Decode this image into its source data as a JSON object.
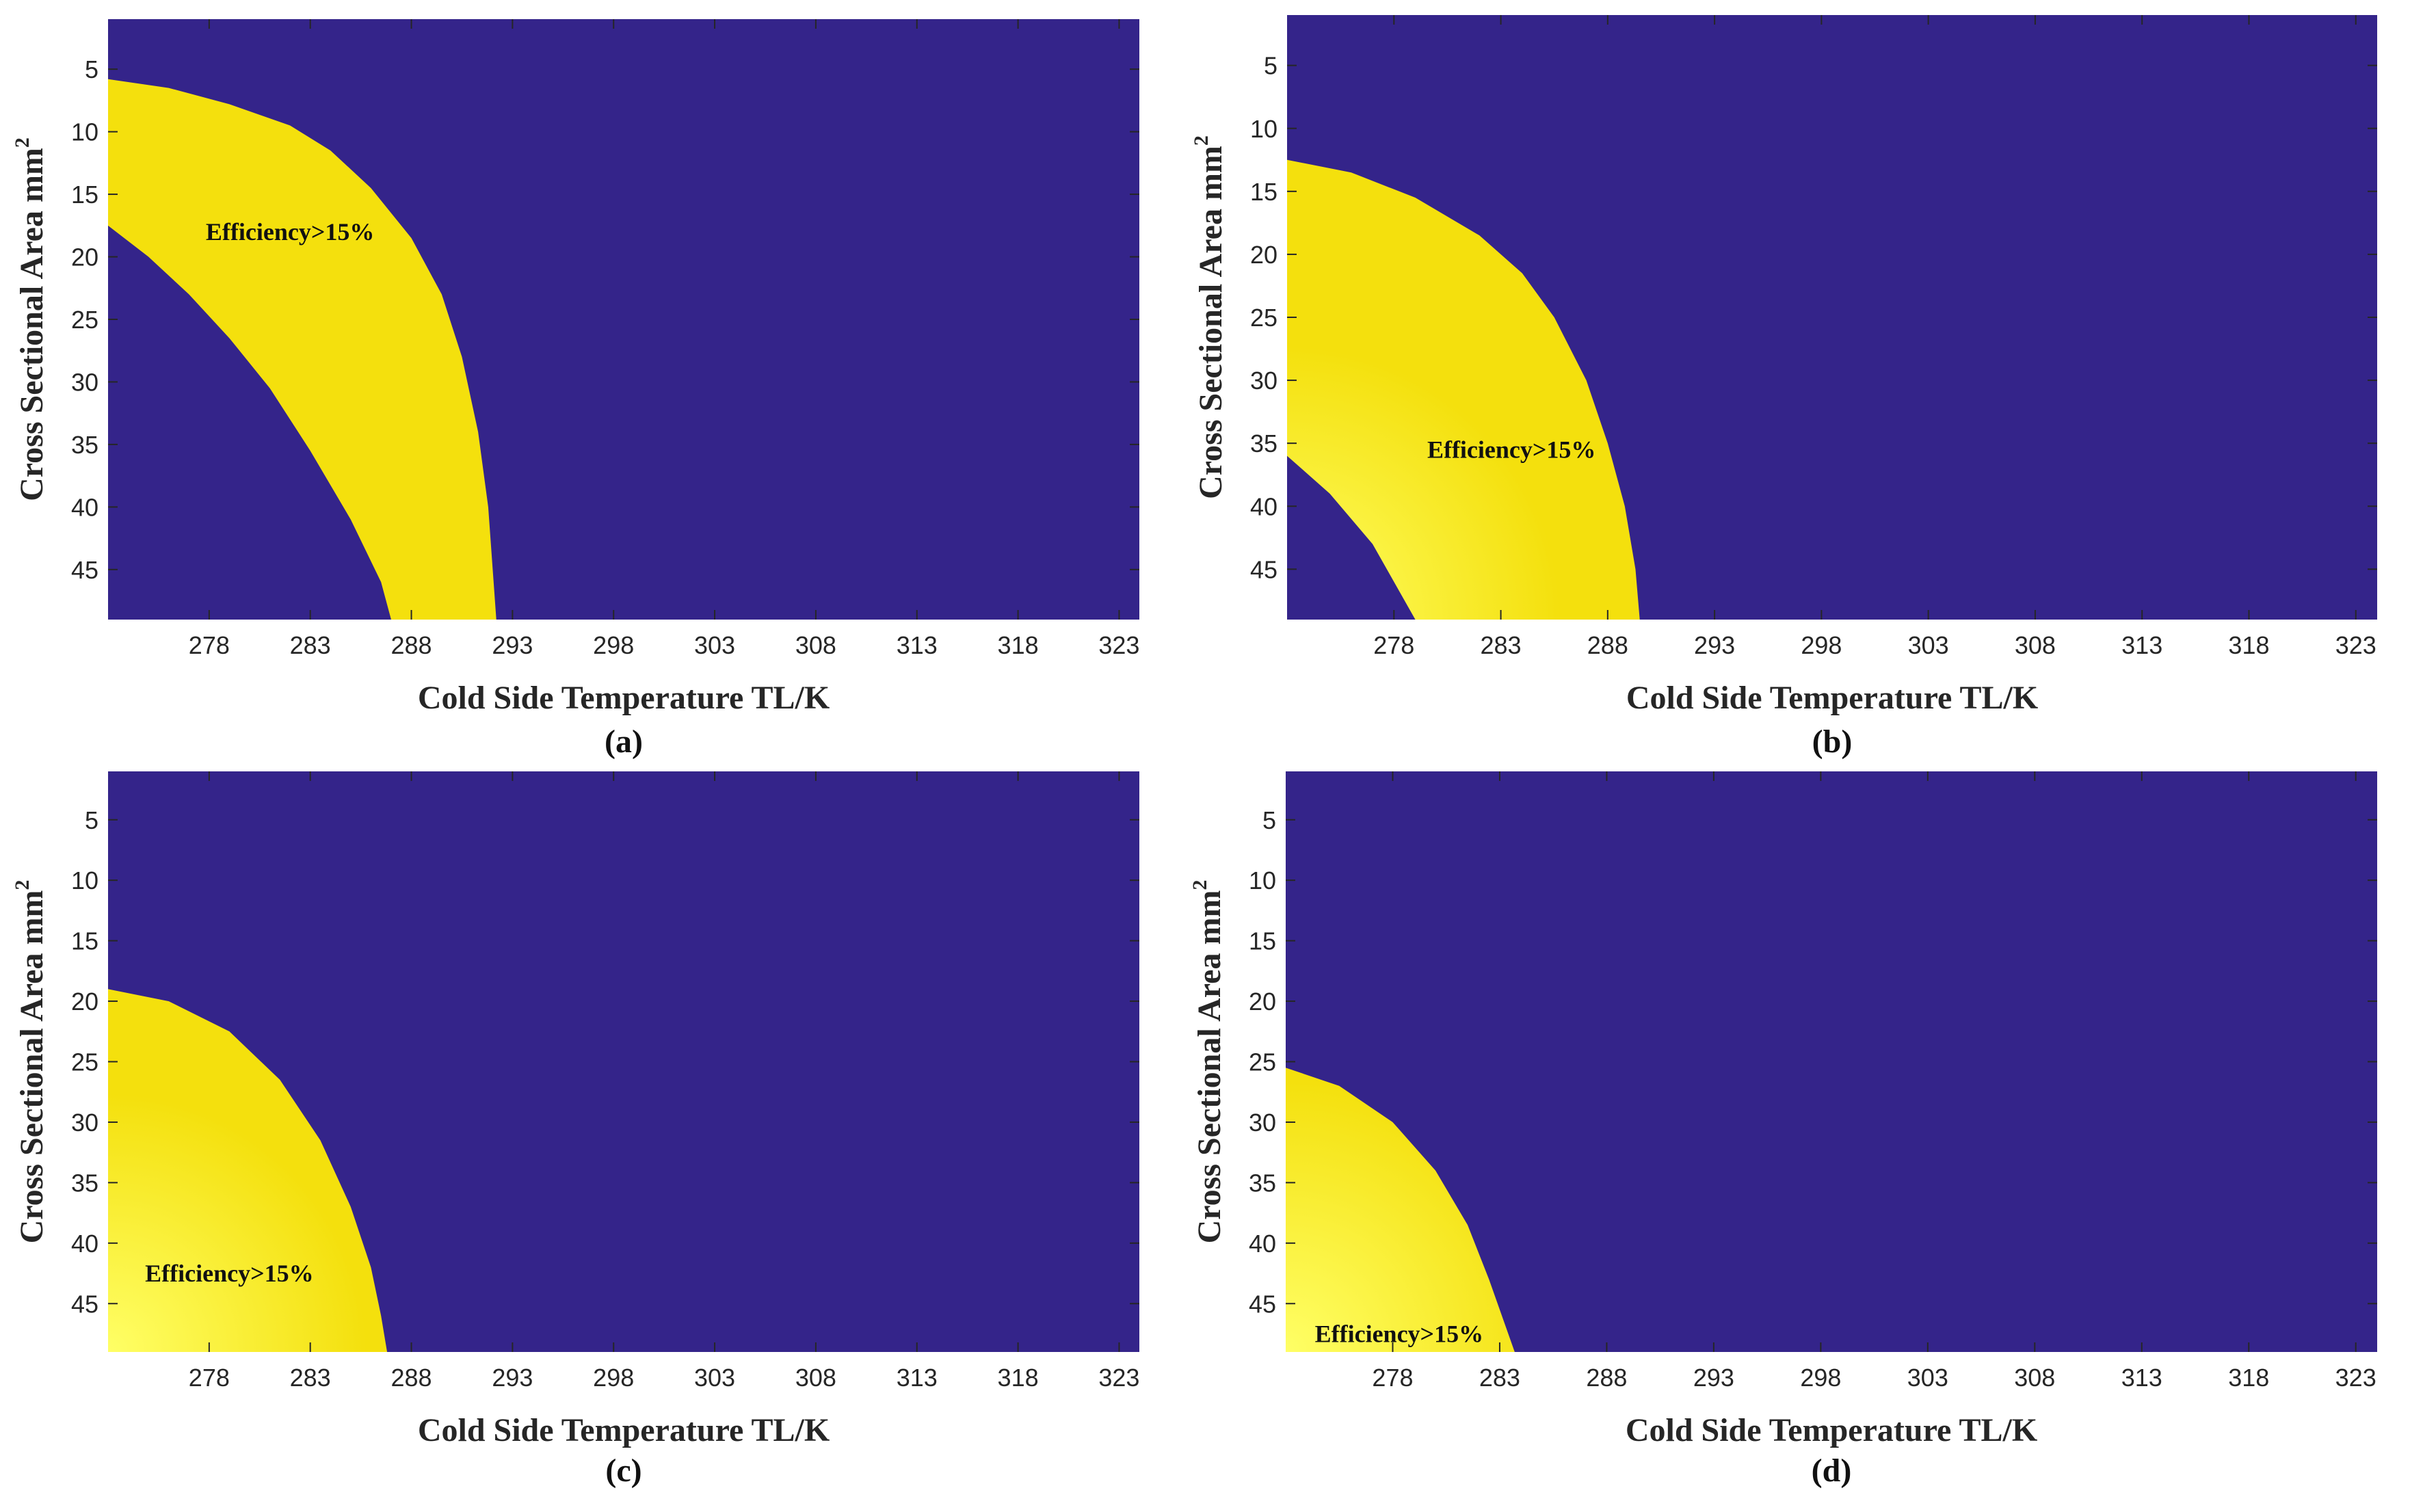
{
  "chart_data": [
    {
      "type": "heatmap",
      "panel": "(a)",
      "caption": "(a)",
      "xlabel": "Cold Side Temperature TL/K",
      "ylabel": "Cross Sectional Area mm",
      "ylabel_superscript": "2",
      "xticks": [
        "278",
        "283",
        "288",
        "293",
        "298",
        "303",
        "308",
        "313",
        "318",
        "323"
      ],
      "yticks": [
        "5",
        "10",
        "15",
        "20",
        "25",
        "30",
        "35",
        "40",
        "45"
      ],
      "xlim": [
        273,
        324
      ],
      "ylim": [
        1,
        49
      ],
      "colors": {
        "background": "#34248a",
        "region": "#f4e00d",
        "region_center": "#ffff66"
      },
      "annotation": {
        "text": "Efficiency>15%",
        "x": 282,
        "y": 18
      },
      "region": {
        "description": "Efficiency>15% band",
        "outer_boundary": [
          [
            273,
            5.8
          ],
          [
            276,
            6.5
          ],
          [
            279,
            7.8
          ],
          [
            282,
            9.5
          ],
          [
            284,
            11.5
          ],
          [
            286,
            14.5
          ],
          [
            288,
            18.5
          ],
          [
            289.5,
            23
          ],
          [
            290.5,
            28
          ],
          [
            291.3,
            34
          ],
          [
            291.8,
            40
          ],
          [
            292.2,
            49
          ]
        ],
        "inner_boundary": [
          [
            273,
            17.5
          ],
          [
            275,
            20
          ],
          [
            277,
            23
          ],
          [
            279,
            26.5
          ],
          [
            281,
            30.5
          ],
          [
            283,
            35.5
          ],
          [
            285,
            41
          ],
          [
            286.5,
            46
          ],
          [
            287,
            49
          ]
        ]
      }
    },
    {
      "type": "heatmap",
      "panel": "(b)",
      "caption": "(b)",
      "xlabel": "Cold Side Temperature TL/K",
      "ylabel": "Cross Sectional Area mm",
      "ylabel_superscript": "2",
      "xticks": [
        "278",
        "283",
        "288",
        "293",
        "298",
        "303",
        "308",
        "313",
        "318",
        "323"
      ],
      "yticks": [
        "5",
        "10",
        "15",
        "20",
        "25",
        "30",
        "35",
        "40",
        "45"
      ],
      "xlim": [
        273,
        324
      ],
      "ylim": [
        1,
        49
      ],
      "colors": {
        "background": "#34248a",
        "region": "#f4e00d",
        "region_center": "#ffff66"
      },
      "annotation": {
        "text": "Efficiency>15%",
        "x": 283.5,
        "y": 35.5
      },
      "region": {
        "description": "Efficiency>15% band",
        "outer_boundary": [
          [
            273,
            12.5
          ],
          [
            276,
            13.5
          ],
          [
            279,
            15.5
          ],
          [
            282,
            18.5
          ],
          [
            284,
            21.5
          ],
          [
            285.5,
            25
          ],
          [
            287,
            30
          ],
          [
            288,
            35
          ],
          [
            288.8,
            40
          ],
          [
            289.3,
            45
          ],
          [
            289.5,
            49
          ]
        ],
        "inner_boundary": [
          [
            273,
            36
          ],
          [
            275,
            39
          ],
          [
            277,
            43
          ],
          [
            279,
            49
          ]
        ]
      }
    },
    {
      "type": "heatmap",
      "panel": "(c)",
      "caption": "(c)",
      "xlabel": "Cold Side Temperature TL/K",
      "ylabel": "Cross Sectional Area mm",
      "ylabel_superscript": "2",
      "xticks": [
        "278",
        "283",
        "288",
        "293",
        "298",
        "303",
        "308",
        "313",
        "318",
        "323"
      ],
      "yticks": [
        "5",
        "10",
        "15",
        "20",
        "25",
        "30",
        "35",
        "40",
        "45"
      ],
      "xlim": [
        273,
        324
      ],
      "ylim": [
        1,
        49
      ],
      "colors": {
        "background": "#34248a",
        "region": "#f4e00d",
        "region_center": "#ffff66"
      },
      "annotation": {
        "text": "Efficiency>15%",
        "x": 279,
        "y": 42.5
      },
      "region": {
        "description": "Efficiency>15% region",
        "outer_boundary": [
          [
            273,
            19
          ],
          [
            276,
            20
          ],
          [
            279,
            22.5
          ],
          [
            281.5,
            26.5
          ],
          [
            283.5,
            31.5
          ],
          [
            285,
            37
          ],
          [
            286,
            42
          ],
          [
            286.5,
            46
          ],
          [
            286.8,
            49
          ]
        ],
        "inner_boundary": []
      }
    },
    {
      "type": "heatmap",
      "panel": "(d)",
      "caption": "(d)",
      "xlabel": "Cold Side Temperature TL/K",
      "ylabel": "Cross Sectional Area mm",
      "ylabel_superscript": "2",
      "xticks": [
        "278",
        "283",
        "288",
        "293",
        "298",
        "303",
        "308",
        "313",
        "318",
        "323"
      ],
      "yticks": [
        "5",
        "10",
        "15",
        "20",
        "25",
        "30",
        "35",
        "40",
        "45"
      ],
      "xlim": [
        273,
        324
      ],
      "ylim": [
        1,
        49
      ],
      "colors": {
        "background": "#34248a",
        "region": "#f4e00d",
        "region_center": "#ffff66"
      },
      "annotation": {
        "text": "Efficiency>15%",
        "x": 278.3,
        "y": 47.5
      },
      "region": {
        "description": "Efficiency>15% region",
        "outer_boundary": [
          [
            273,
            25.5
          ],
          [
            275.5,
            27
          ],
          [
            278,
            30
          ],
          [
            280,
            34
          ],
          [
            281.5,
            38.5
          ],
          [
            282.5,
            43
          ],
          [
            283.3,
            47
          ],
          [
            283.7,
            49
          ]
        ],
        "inner_boundary": []
      }
    }
  ]
}
